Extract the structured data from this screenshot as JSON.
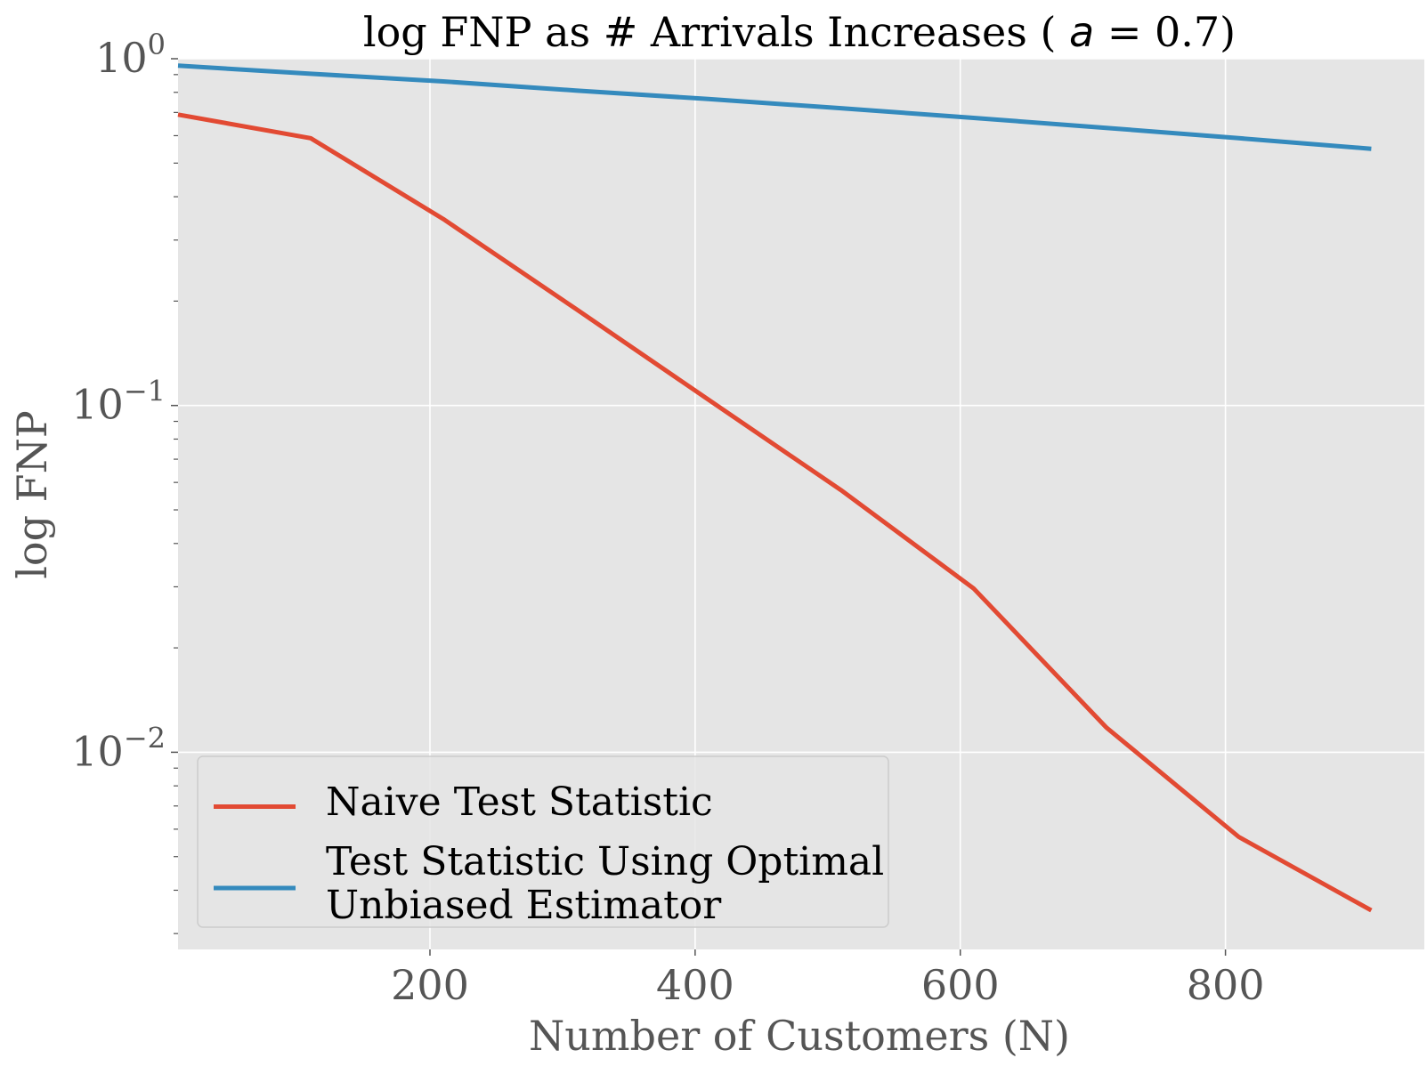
{
  "chart_data": {
    "type": "line",
    "title": {
      "prefix": "log FNP as # Arrivals Increases ( ",
      "math": "a",
      "suffix": " = 0.7)"
    },
    "xlabel": "Number of Customers (N)",
    "ylabel": "log FNP",
    "yscale": "log",
    "xlim": [
      10,
      950
    ],
    "ylim": [
      0.0027,
      1.0
    ],
    "x_ticks": [
      200,
      400,
      600,
      800
    ],
    "y_ticks": [
      {
        "value": 1.0,
        "base": "10",
        "exponent": "0"
      },
      {
        "value": 0.1,
        "base": "10",
        "exponent": "−1"
      },
      {
        "value": 0.01,
        "base": "10",
        "exponent": "−2"
      }
    ],
    "y_minor_ticks": [
      0.002,
      0.003,
      0.004,
      0.005,
      0.006,
      0.007,
      0.008,
      0.009,
      0.02,
      0.03,
      0.04,
      0.05,
      0.06,
      0.07,
      0.08,
      0.09,
      0.2,
      0.3,
      0.4,
      0.5,
      0.6,
      0.7,
      0.8,
      0.9
    ],
    "grid": true,
    "background": "#e5e5e5",
    "legend_position": "lower-left",
    "series": [
      {
        "name": "Naive Test Statistic",
        "name_lines": [
          "Naive Test Statistic"
        ],
        "color": "#e24a33",
        "x": [
          10,
          110,
          210,
          310,
          410,
          510,
          610,
          710,
          810,
          910
        ],
        "y": [
          0.69,
          0.59,
          0.345,
          0.19,
          0.104,
          0.057,
          0.0297,
          0.0118,
          0.0057,
          0.0035
        ]
      },
      {
        "name": "Test Statistic Using Optimal Unbiased Estimator",
        "name_lines": [
          "Test Statistic Using Optimal",
          "Unbiased Estimator"
        ],
        "color": "#348abd",
        "x": [
          10,
          110,
          210,
          310,
          410,
          510,
          610,
          710,
          810,
          910
        ],
        "y": [
          0.955,
          0.905,
          0.86,
          0.81,
          0.765,
          0.72,
          0.675,
          0.632,
          0.59,
          0.55
        ]
      }
    ]
  }
}
